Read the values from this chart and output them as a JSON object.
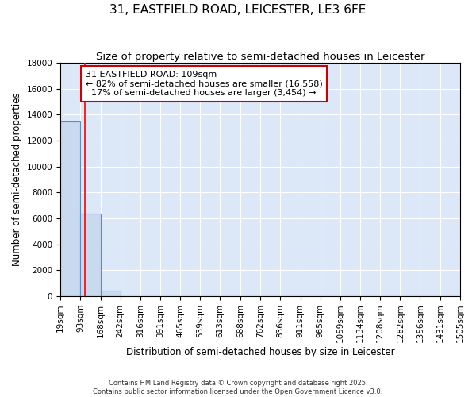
{
  "title": "31, EASTFIELD ROAD, LEICESTER, LE3 6FE",
  "subtitle": "Size of property relative to semi-detached houses in Leicester",
  "xlabel": "Distribution of semi-detached houses by size in Leicester",
  "ylabel": "Number of semi-detached properties",
  "bar_values": [
    13500,
    6400,
    400,
    0,
    0,
    0,
    0,
    0,
    0,
    0,
    0,
    0,
    0,
    0,
    0,
    0,
    0,
    0,
    0,
    0
  ],
  "bin_edges": [
    19,
    93,
    168,
    242,
    316,
    391,
    465,
    539,
    613,
    688,
    762,
    836,
    911,
    985,
    1059,
    1134,
    1208,
    1282,
    1356,
    1431,
    1505
  ],
  "bar_color": "#c8d9f0",
  "bar_edge_color": "#5a8fc3",
  "red_line_x": 109,
  "ylim": [
    0,
    18000
  ],
  "yticks": [
    0,
    2000,
    4000,
    6000,
    8000,
    10000,
    12000,
    14000,
    16000,
    18000
  ],
  "annotation_text": "31 EASTFIELD ROAD: 109sqm\n← 82% of semi-detached houses are smaller (16,558)\n  17% of semi-detached houses are larger (3,454) →",
  "annotation_box_color": "#ffffff",
  "annotation_box_edge": "#cc0000",
  "footer1": "Contains HM Land Registry data © Crown copyright and database right 2025.",
  "footer2": "Contains public sector information licensed under the Open Government Licence v3.0.",
  "bg_color": "#dce8f8",
  "title_fontsize": 11,
  "subtitle_fontsize": 9.5,
  "axis_label_fontsize": 8.5,
  "tick_fontsize": 7.5
}
